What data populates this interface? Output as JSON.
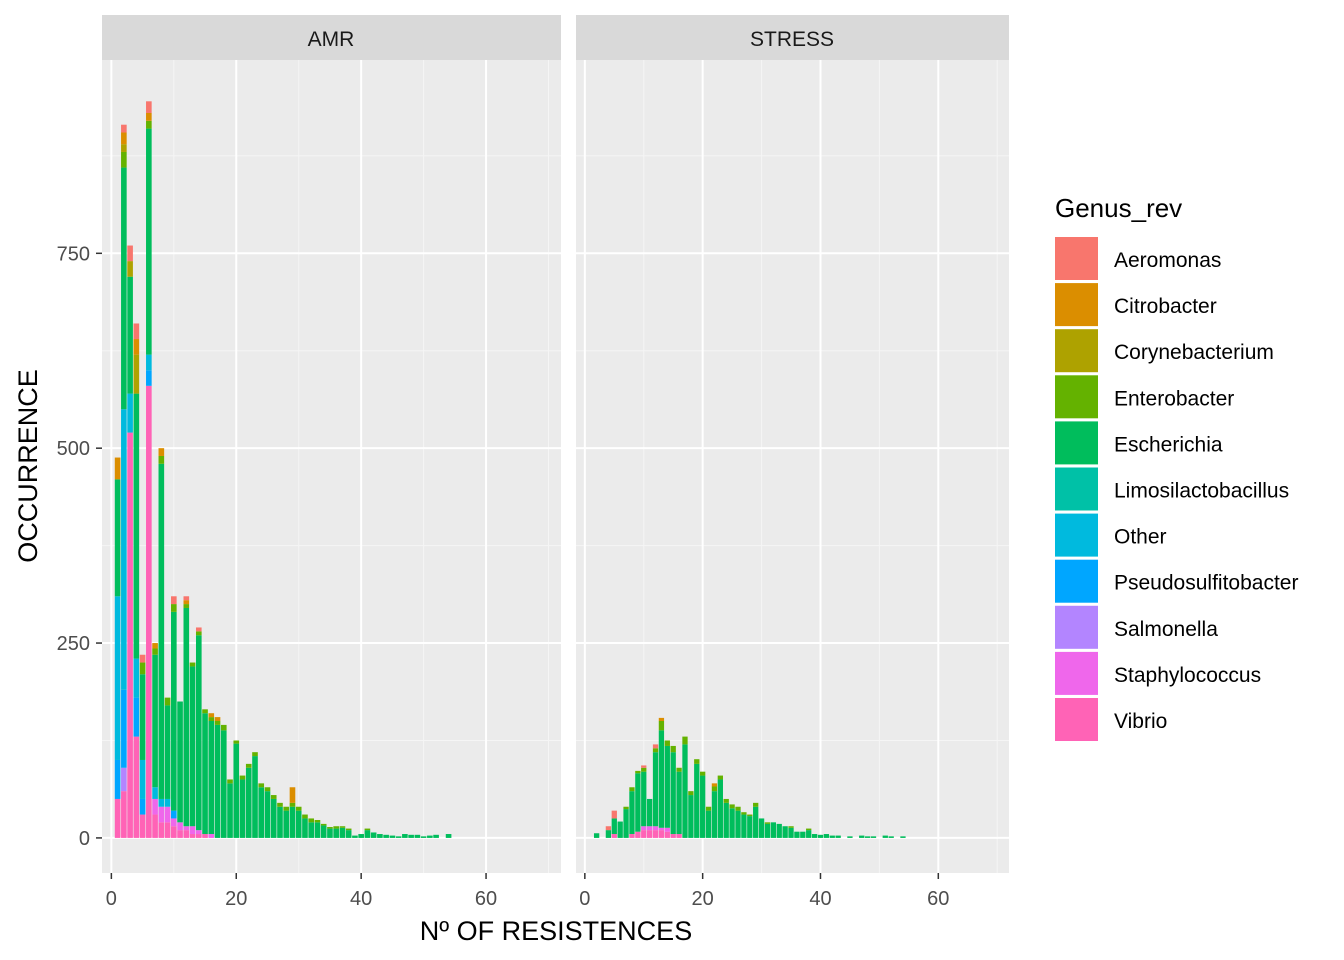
{
  "chart_data": {
    "type": "bar",
    "stacked": true,
    "facets": [
      "AMR",
      "STRESS"
    ],
    "xlabel": "Nº OF RESISTENCES",
    "ylabel": "OCCURRENCE",
    "xlim": [
      -1.5,
      72
    ],
    "ylim": [
      -45,
      998
    ],
    "xticks": [
      0,
      20,
      40,
      60
    ],
    "yticks": [
      0,
      250,
      500,
      750
    ],
    "xtick_labels": [
      "0",
      "20",
      "40",
      "60"
    ],
    "ytick_labels": [
      "0",
      "250",
      "500",
      "750"
    ],
    "grid": true,
    "legend": {
      "title": "Genus_rev",
      "position": "right",
      "entries": [
        {
          "name": "Aeromonas",
          "color": "#F8766D"
        },
        {
          "name": "Citrobacter",
          "color": "#DB8E00"
        },
        {
          "name": "Corynebacterium",
          "color": "#AEA200"
        },
        {
          "name": "Enterobacter",
          "color": "#64B200"
        },
        {
          "name": "Escherichia",
          "color": "#00BD5C"
        },
        {
          "name": "Limosilactobacillus",
          "color": "#00C1A7"
        },
        {
          "name": "Other",
          "color": "#00BADE"
        },
        {
          "name": "Pseudosulfitobacter",
          "color": "#00A6FF"
        },
        {
          "name": "Salmonella",
          "color": "#B385FF"
        },
        {
          "name": "Staphylococcus",
          "color": "#EF67EB"
        },
        {
          "name": "Vibrio",
          "color": "#FF63B6"
        }
      ]
    },
    "panels": [
      {
        "facet": "AMR",
        "bars": [
          {
            "x": 1,
            "segments": {
              "Vibrio": 50,
              "Pseudosulfitobacter": 50,
              "Other": 210,
              "Escherichia": 150,
              "Citrobacter": 28
            }
          },
          {
            "x": 2,
            "segments": {
              "Vibrio": 60,
              "Salmonella": 30,
              "Pseudosulfitobacter": 100,
              "Other": 360,
              "Escherichia": 310,
              "Enterobacter": 20,
              "Corynebacterium": 10,
              "Citrobacter": 15,
              "Aeromonas": 10
            }
          },
          {
            "x": 3,
            "segments": {
              "Vibrio": 520,
              "Other": 50,
              "Escherichia": 150,
              "Corynebacterium": 20,
              "Aeromonas": 20
            }
          },
          {
            "x": 4,
            "segments": {
              "Vibrio": 130,
              "Pseudosulfitobacter": 50,
              "Other": 50,
              "Escherichia": 340,
              "Corynebacterium": 50,
              "Citrobacter": 20,
              "Aeromonas": 20
            }
          },
          {
            "x": 5,
            "segments": {
              "Vibrio": 30,
              "Pseudosulfitobacter": 20,
              "Other": 50,
              "Escherichia": 110,
              "Enterobacter": 15,
              "Aeromonas": 10
            }
          },
          {
            "x": 6,
            "segments": {
              "Vibrio": 580,
              "Pseudosulfitobacter": 20,
              "Other": 20,
              "Escherichia": 290,
              "Enterobacter": 10,
              "Citrobacter": 10,
              "Aeromonas": 15
            }
          },
          {
            "x": 7,
            "segments": {
              "Vibrio": 30,
              "Staphylococcus": 20,
              "Other": 15,
              "Escherichia": 170,
              "Enterobacter": 8,
              "Citrobacter": 7
            }
          },
          {
            "x": 8,
            "segments": {
              "Vibrio": 20,
              "Staphylococcus": 20,
              "Other": 10,
              "Escherichia": 430,
              "Enterobacter": 10,
              "Citrobacter": 10
            }
          },
          {
            "x": 9,
            "segments": {
              "Vibrio": 20,
              "Staphylococcus": 20,
              "Other": 10,
              "Escherichia": 120,
              "Enterobacter": 10
            }
          },
          {
            "x": 10,
            "segments": {
              "Vibrio": 15,
              "Staphylococcus": 10,
              "Pseudosulfitobacter": 10,
              "Escherichia": 255,
              "Enterobacter": 10,
              "Aeromonas": 10
            }
          },
          {
            "x": 11,
            "segments": {
              "Vibrio": 10,
              "Staphylococcus": 10,
              "Escherichia": 155
            }
          },
          {
            "x": 12,
            "segments": {
              "Vibrio": 10,
              "Staphylococcus": 5,
              "Escherichia": 280,
              "Enterobacter": 5,
              "Citrobacter": 5,
              "Aeromonas": 5
            }
          },
          {
            "x": 13,
            "segments": {
              "Vibrio": 5,
              "Staphylococcus": 10,
              "Escherichia": 205,
              "Enterobacter": 5
            }
          },
          {
            "x": 14,
            "segments": {
              "Vibrio": 5,
              "Staphylococcus": 5,
              "Escherichia": 250,
              "Enterobacter": 5,
              "Aeromonas": 5
            }
          },
          {
            "x": 15,
            "segments": {
              "Vibrio": 5,
              "Escherichia": 155,
              "Enterobacter": 5
            }
          },
          {
            "x": 16,
            "segments": {
              "Staphylococcus": 5,
              "Escherichia": 145,
              "Enterobacter": 5,
              "Citrobacter": 5
            }
          },
          {
            "x": 17,
            "segments": {
              "Escherichia": 145,
              "Enterobacter": 5,
              "Citrobacter": 5
            }
          },
          {
            "x": 18,
            "segments": {
              "Escherichia": 138,
              "Enterobacter": 7
            }
          },
          {
            "x": 19,
            "segments": {
              "Escherichia": 70,
              "Enterobacter": 5
            }
          },
          {
            "x": 20,
            "segments": {
              "Escherichia": 121,
              "Enterobacter": 4
            }
          },
          {
            "x": 21,
            "segments": {
              "Escherichia": 75,
              "Enterobacter": 5
            }
          },
          {
            "x": 22,
            "segments": {
              "Escherichia": 90,
              "Enterobacter": 5
            }
          },
          {
            "x": 23,
            "segments": {
              "Escherichia": 105,
              "Enterobacter": 5
            }
          },
          {
            "x": 24,
            "segments": {
              "Escherichia": 65,
              "Enterobacter": 5
            }
          },
          {
            "x": 25,
            "segments": {
              "Escherichia": 60,
              "Enterobacter": 5
            }
          },
          {
            "x": 26,
            "segments": {
              "Escherichia": 50,
              "Enterobacter": 5
            }
          },
          {
            "x": 27,
            "segments": {
              "Escherichia": 40,
              "Enterobacter": 5
            }
          },
          {
            "x": 28,
            "segments": {
              "Escherichia": 35,
              "Enterobacter": 5
            }
          },
          {
            "x": 29,
            "segments": {
              "Escherichia": 40,
              "Enterobacter": 5,
              "Citrobacter": 20
            }
          },
          {
            "x": 30,
            "segments": {
              "Escherichia": 35,
              "Enterobacter": 5
            }
          },
          {
            "x": 31,
            "segments": {
              "Escherichia": 25,
              "Enterobacter": 5
            }
          },
          {
            "x": 32,
            "segments": {
              "Escherichia": 20,
              "Enterobacter": 5
            }
          },
          {
            "x": 33,
            "segments": {
              "Escherichia": 20,
              "Enterobacter": 3
            }
          },
          {
            "x": 34,
            "segments": {
              "Escherichia": 16,
              "Enterobacter": 2
            }
          },
          {
            "x": 35,
            "segments": {
              "Escherichia": 12,
              "Enterobacter": 2
            }
          },
          {
            "x": 36,
            "segments": {
              "Escherichia": 12,
              "Enterobacter": 3
            }
          },
          {
            "x": 37,
            "segments": {
              "Escherichia": 13,
              "Enterobacter": 2
            }
          },
          {
            "x": 38,
            "segments": {
              "Escherichia": 10,
              "Enterobacter": 2
            }
          },
          {
            "x": 39,
            "segments": {
              "Escherichia": 3
            }
          },
          {
            "x": 40,
            "segments": {
              "Escherichia": 5
            }
          },
          {
            "x": 41,
            "segments": {
              "Escherichia": 10,
              "Enterobacter": 2
            }
          },
          {
            "x": 42,
            "segments": {
              "Escherichia": 7
            }
          },
          {
            "x": 43,
            "segments": {
              "Escherichia": 5
            }
          },
          {
            "x": 44,
            "segments": {
              "Escherichia": 4
            }
          },
          {
            "x": 45,
            "segments": {
              "Escherichia": 3
            }
          },
          {
            "x": 46,
            "segments": {
              "Escherichia": 2
            }
          },
          {
            "x": 47,
            "segments": {
              "Escherichia": 5
            }
          },
          {
            "x": 48,
            "segments": {
              "Escherichia": 4
            }
          },
          {
            "x": 49,
            "segments": {
              "Escherichia": 4
            }
          },
          {
            "x": 50,
            "segments": {
              "Escherichia": 2
            }
          },
          {
            "x": 51,
            "segments": {
              "Escherichia": 3
            }
          },
          {
            "x": 52,
            "segments": {
              "Escherichia": 4
            }
          },
          {
            "x": 54,
            "segments": {
              "Escherichia": 5
            }
          }
        ]
      },
      {
        "facet": "STRESS",
        "bars": [
          {
            "x": 2,
            "segments": {
              "Escherichia": 6
            }
          },
          {
            "x": 4,
            "segments": {
              "Escherichia": 10,
              "Aeromonas": 5
            }
          },
          {
            "x": 5,
            "segments": {
              "Vibrio": 5,
              "Escherichia": 20,
              "Aeromonas": 10
            }
          },
          {
            "x": 6,
            "segments": {
              "Escherichia": 21
            }
          },
          {
            "x": 7,
            "segments": {
              "Escherichia": 37,
              "Enterobacter": 3
            }
          },
          {
            "x": 8,
            "segments": {
              "Vibrio": 5,
              "Escherichia": 55,
              "Enterobacter": 5
            }
          },
          {
            "x": 9,
            "segments": {
              "Vibrio": 8,
              "Escherichia": 75,
              "Enterobacter": 3
            }
          },
          {
            "x": 10,
            "segments": {
              "Vibrio": 10,
              "Staphylococcus": 5,
              "Escherichia": 70,
              "Enterobacter": 5,
              "Aeromonas": 3
            }
          },
          {
            "x": 11,
            "segments": {
              "Vibrio": 10,
              "Staphylococcus": 5,
              "Escherichia": 35
            }
          },
          {
            "x": 12,
            "segments": {
              "Vibrio": 10,
              "Staphylococcus": 5,
              "Escherichia": 95,
              "Enterobacter": 5,
              "Aeromonas": 5
            }
          },
          {
            "x": 13,
            "segments": {
              "Vibrio": 10,
              "Staphylococcus": 3,
              "Escherichia": 125,
              "Enterobacter": 12,
              "Citrobacter": 4
            }
          },
          {
            "x": 14,
            "segments": {
              "Vibrio": 8,
              "Staphylococcus": 5,
              "Escherichia": 105,
              "Enterobacter": 7
            }
          },
          {
            "x": 15,
            "segments": {
              "Vibrio": 5,
              "Escherichia": 105,
              "Enterobacter": 8
            }
          },
          {
            "x": 16,
            "segments": {
              "Vibrio": 5,
              "Escherichia": 80,
              "Enterobacter": 5
            }
          },
          {
            "x": 17,
            "segments": {
              "Escherichia": 120,
              "Enterobacter": 10
            }
          },
          {
            "x": 18,
            "segments": {
              "Escherichia": 55,
              "Enterobacter": 5
            }
          },
          {
            "x": 19,
            "segments": {
              "Escherichia": 95,
              "Enterobacter": 6
            }
          },
          {
            "x": 20,
            "segments": {
              "Escherichia": 80,
              "Enterobacter": 5
            }
          },
          {
            "x": 21,
            "segments": {
              "Escherichia": 35,
              "Enterobacter": 5
            }
          },
          {
            "x": 22,
            "segments": {
              "Escherichia": 60,
              "Enterobacter": 6,
              "Citrobacter": 4
            }
          },
          {
            "x": 23,
            "segments": {
              "Escherichia": 75,
              "Enterobacter": 5
            }
          },
          {
            "x": 24,
            "segments": {
              "Escherichia": 45,
              "Enterobacter": 5
            }
          },
          {
            "x": 25,
            "segments": {
              "Escherichia": 38,
              "Enterobacter": 5
            }
          },
          {
            "x": 26,
            "segments": {
              "Escherichia": 35,
              "Enterobacter": 5
            }
          },
          {
            "x": 27,
            "segments": {
              "Escherichia": 30,
              "Enterobacter": 3
            }
          },
          {
            "x": 28,
            "segments": {
              "Escherichia": 28,
              "Enterobacter": 2
            }
          },
          {
            "x": 29,
            "segments": {
              "Escherichia": 40,
              "Enterobacter": 5
            }
          },
          {
            "x": 30,
            "segments": {
              "Escherichia": 25
            }
          },
          {
            "x": 31,
            "segments": {
              "Escherichia": 18,
              "Enterobacter": 2
            }
          },
          {
            "x": 32,
            "segments": {
              "Escherichia": 20
            }
          },
          {
            "x": 33,
            "segments": {
              "Escherichia": 18
            }
          },
          {
            "x": 34,
            "segments": {
              "Escherichia": 15
            }
          },
          {
            "x": 35,
            "segments": {
              "Escherichia": 13,
              "Enterobacter": 2
            }
          },
          {
            "x": 36,
            "segments": {
              "Escherichia": 8
            }
          },
          {
            "x": 37,
            "segments": {
              "Escherichia": 8
            }
          },
          {
            "x": 38,
            "segments": {
              "Escherichia": 10,
              "Enterobacter": 2
            }
          },
          {
            "x": 39,
            "segments": {
              "Escherichia": 5
            }
          },
          {
            "x": 40,
            "segments": {
              "Escherichia": 4
            }
          },
          {
            "x": 41,
            "segments": {
              "Escherichia": 5
            }
          },
          {
            "x": 42,
            "segments": {
              "Escherichia": 3
            }
          },
          {
            "x": 43,
            "segments": {
              "Escherichia": 3
            }
          },
          {
            "x": 45,
            "segments": {
              "Escherichia": 2
            }
          },
          {
            "x": 47,
            "segments": {
              "Escherichia": 3
            }
          },
          {
            "x": 48,
            "segments": {
              "Escherichia": 2
            }
          },
          {
            "x": 49,
            "segments": {
              "Escherichia": 2
            }
          },
          {
            "x": 51,
            "segments": {
              "Escherichia": 3
            }
          },
          {
            "x": 52,
            "segments": {
              "Escherichia": 2
            }
          },
          {
            "x": 54,
            "segments": {
              "Escherichia": 2
            }
          }
        ]
      }
    ]
  }
}
